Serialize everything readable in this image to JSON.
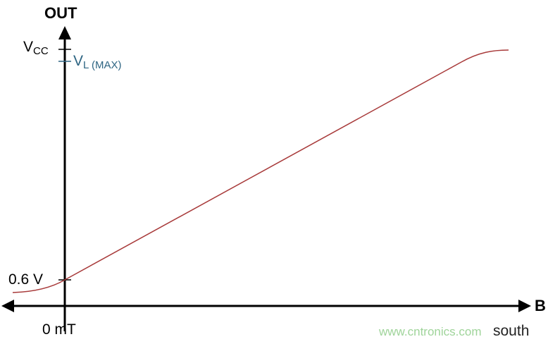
{
  "y_axis": {
    "label": "OUT"
  },
  "x_axis": {
    "label": "B",
    "direction_label": "south",
    "origin_label": "0 mT"
  },
  "y_ticks": {
    "vcc": {
      "main": "V",
      "sub": "CC"
    },
    "vl_max": {
      "main": "V",
      "sub": "L (MAX)"
    },
    "offset": "0.6 V"
  },
  "watermark": "www.cntronics.com",
  "colors": {
    "curve": "#a83a3a",
    "vl_max": "#2e6583",
    "axes": "#000000",
    "watermark": "#9fd49a"
  }
}
